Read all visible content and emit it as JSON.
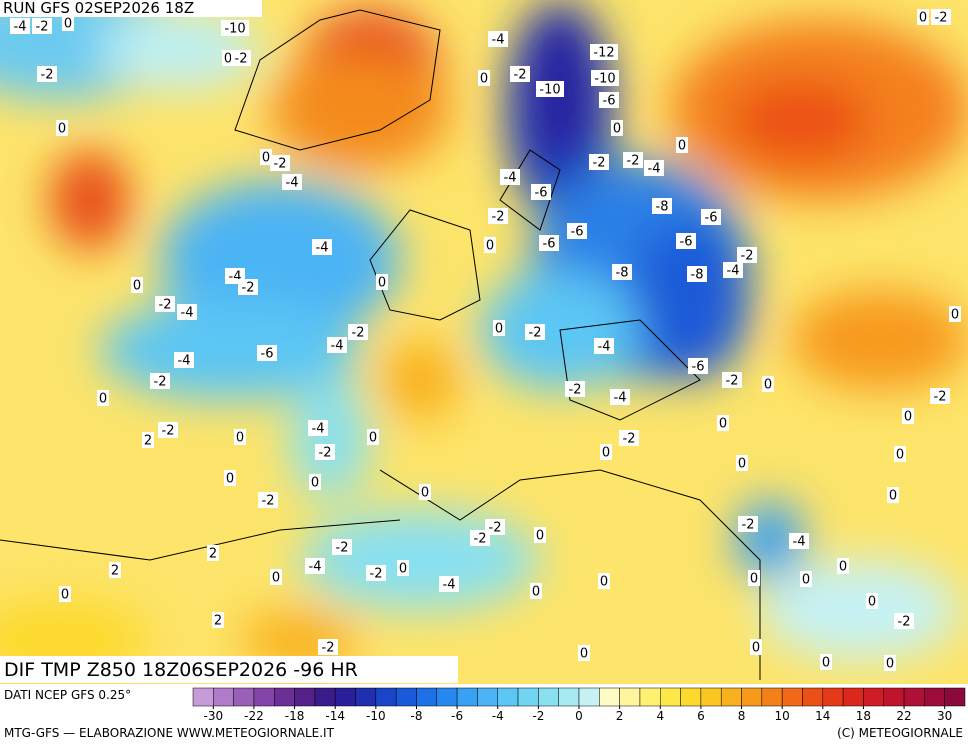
{
  "header": {
    "run": "RUN GFS 02SEP2026 18Z"
  },
  "map": {
    "field_title": "DIF TMP Z850 18Z06SEP2026 -96 HR",
    "contour_labels": [
      -4,
      -2,
      0,
      -10,
      0,
      -2,
      0,
      -2,
      -2,
      0,
      -4,
      0,
      -2,
      -12,
      -10,
      -10,
      -6,
      0,
      0,
      0,
      -2,
      -4,
      -2,
      -2,
      -4,
      -4,
      -6,
      -8,
      -6,
      -2,
      -4,
      -6,
      -6,
      -6,
      0,
      -4,
      -2,
      -2,
      -4,
      -8,
      -8,
      0,
      0,
      -2,
      -4,
      0,
      0,
      -2,
      -2,
      -4,
      -4,
      -6,
      -4,
      -6,
      -2,
      -2,
      0,
      -2,
      0,
      -4,
      -2,
      0,
      -2,
      2,
      -4,
      0,
      0,
      -2,
      -2,
      0,
      0,
      0,
      0,
      0,
      0,
      -2,
      0,
      0,
      -2,
      -2,
      -2,
      0,
      -4,
      -2,
      2,
      -4,
      2,
      0,
      -2,
      0,
      0,
      0,
      0,
      0,
      -4,
      0,
      0,
      0,
      2,
      -2,
      -2,
      0,
      0,
      0,
      0
    ]
  },
  "footer": {
    "source": "DATI NCEP GFS 0.25°",
    "credit": "MTG-GFS — ELABORAZIONE WWW.METEOGIORNALE.IT",
    "copyright": "(C) METEOGIORNALE"
  },
  "colorbar": {
    "labels": [
      -30,
      -22,
      -18,
      -14,
      -10,
      -8,
      -6,
      -4,
      -2,
      0,
      2,
      4,
      6,
      8,
      10,
      14,
      18,
      22,
      30
    ],
    "colors": [
      "#c79ad8",
      "#b07cc9",
      "#9a5fb9",
      "#8345a8",
      "#6c2f98",
      "#56208a",
      "#3b1a8a",
      "#2a1f9a",
      "#1f2fb0",
      "#1a45c8",
      "#1a5ad8",
      "#1e70e6",
      "#2888ee",
      "#3aa0f2",
      "#4cb4f4",
      "#5cc6f4",
      "#70d4f2",
      "#88e0f0",
      "#a6eaf2",
      "#c6f2f4",
      "#fefbc4",
      "#fef59c",
      "#fef070",
      "#fde84a",
      "#fcd92c",
      "#fbc622",
      "#f9b01e",
      "#f79a1c",
      "#f4801a",
      "#f06818",
      "#eb5018",
      "#e43a1a",
      "#dc281c",
      "#d01c24",
      "#c0142e",
      "#ae1036",
      "#9c0c3a",
      "#8a0a3c"
    ]
  }
}
